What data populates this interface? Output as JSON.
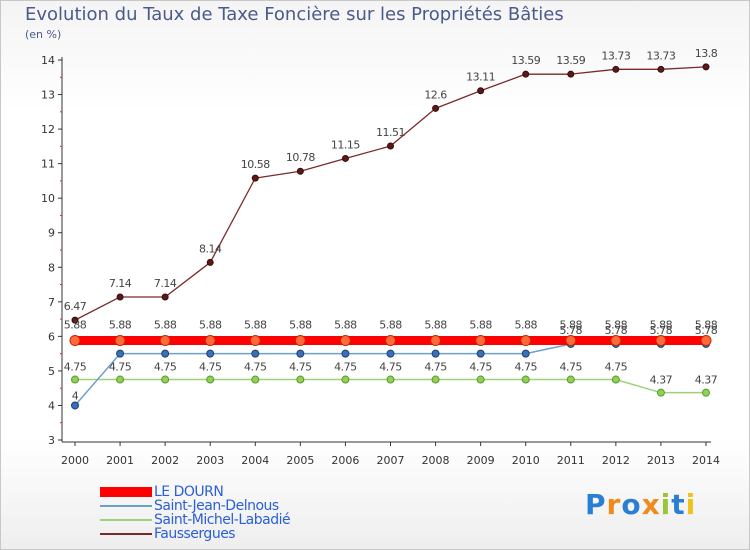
{
  "chart_data": {
    "type": "line",
    "title": "Evolution du Taux de Taxe Foncière sur les Propriétés Bâties",
    "subtitle": "(en %)",
    "x": [
      "2000",
      "2001",
      "2002",
      "2003",
      "2004",
      "2005",
      "2006",
      "2007",
      "2008",
      "2009",
      "2010",
      "2011",
      "2012",
      "2013",
      "2014"
    ],
    "ylim": [
      3,
      14
    ],
    "yticks": [
      "3",
      "4",
      "5",
      "6",
      "7",
      "8",
      "9",
      "10",
      "11",
      "12",
      "13",
      "14"
    ],
    "series": [
      {
        "name": "LE DOURN",
        "color": "#ff0000",
        "values": [
          5.88,
          5.88,
          5.88,
          5.88,
          5.88,
          5.88,
          5.88,
          5.88,
          5.88,
          5.88,
          5.88,
          5.88,
          5.88,
          5.88,
          5.88
        ],
        "labels": [
          "5.88",
          "5.88",
          "5.88",
          "5.88",
          "5.88",
          "5.88",
          "5.88",
          "5.88",
          "5.88",
          "5.88",
          "5.88",
          "5.88",
          "5.88",
          "5.88",
          "5.88"
        ]
      },
      {
        "name": "Saint-Jean-Delnous",
        "color": "#6fa0cc",
        "values": [
          4,
          5.5,
          5.5,
          5.5,
          5.5,
          5.5,
          5.5,
          5.5,
          5.5,
          5.5,
          5.5,
          5.78,
          5.78,
          5.78,
          5.78
        ],
        "labels": [
          "4",
          "",
          "",
          "",
          "",
          "",
          "",
          "",
          "",
          "",
          "",
          "5.78",
          "5.78",
          "5.78",
          "5.78"
        ]
      },
      {
        "name": "Saint-Michel-Labadié",
        "color": "#9ed27a",
        "values": [
          4.75,
          4.75,
          4.75,
          4.75,
          4.75,
          4.75,
          4.75,
          4.75,
          4.75,
          4.75,
          4.75,
          4.75,
          4.75,
          4.37,
          4.37
        ],
        "labels": [
          "4.75",
          "4.75",
          "4.75",
          "4.75",
          "4.75",
          "4.75",
          "4.75",
          "4.75",
          "4.75",
          "4.75",
          "4.75",
          "4.75",
          "4.75",
          "4.37",
          "4.37"
        ]
      },
      {
        "name": "Faussergues",
        "color": "#7a2a2a",
        "values": [
          6.47,
          7.14,
          7.14,
          8.14,
          10.58,
          10.78,
          11.15,
          11.51,
          12.6,
          13.11,
          13.59,
          13.59,
          13.73,
          13.73,
          13.8
        ],
        "labels": [
          "6.47",
          "7.14",
          "7.14",
          "8.14",
          "10.58",
          "10.78",
          "11.15",
          "11.51",
          "12.6",
          "13.11",
          "13.59",
          "13.59",
          "13.73",
          "13.73",
          "13.8"
        ]
      }
    ]
  },
  "legend": {
    "items": [
      "LE DOURN",
      "Saint-Jean-Delnous",
      "Saint-Michel-Labadié",
      "Faussergues"
    ],
    "colors": [
      "#ff0000",
      "#6fa0cc",
      "#9ed27a",
      "#7a2a2a"
    ]
  },
  "logo": {
    "text": "Proxiti"
  }
}
